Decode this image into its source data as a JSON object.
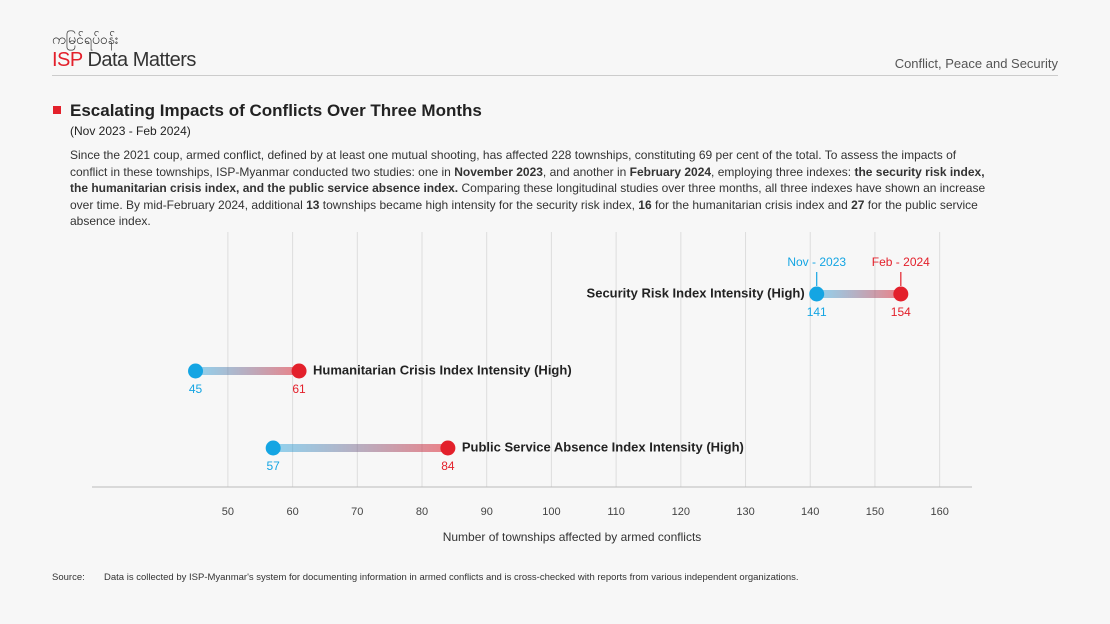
{
  "header": {
    "logo_script": "ကမြင်ရပ်ဝန်း",
    "logo_isp": "ISP",
    "logo_name": "Data Matters",
    "section": "Conflict, Peace and Security"
  },
  "title": "Escalating Impacts of Conflicts Over Three Months",
  "subtitle": "(Nov 2023 - Feb 2024)",
  "paragraph": {
    "runs": [
      {
        "text": "Since the 2021 coup, armed conflict, defined by at least one mutual shooting, has affected 228 townships, constituting 69 per cent of the total. To assess the impacts of conflict in these townships, ISP-Myanmar conducted two studies: one in ",
        "bold": false
      },
      {
        "text": "November 2023",
        "bold": true
      },
      {
        "text": ", and another in ",
        "bold": false
      },
      {
        "text": "February 2024",
        "bold": true
      },
      {
        "text": ", employing three indexes: ",
        "bold": false
      },
      {
        "text": "the security risk index, the humanitarian crisis index, and the public service absence index.",
        "bold": true
      },
      {
        "text": " Comparing these longitudinal studies over three months, all three indexes have shown an increase over time. By mid-February 2024, additional ",
        "bold": false
      },
      {
        "text": "13",
        "bold": true
      },
      {
        "text": " townships became high intensity for the security risk index, ",
        "bold": false
      },
      {
        "text": "16",
        "bold": true
      },
      {
        "text": " for the humanitarian crisis index and ",
        "bold": false
      },
      {
        "text": "27",
        "bold": true
      },
      {
        "text": " for the public service absence index.",
        "bold": false
      }
    ]
  },
  "chart_data": {
    "type": "dumbbell",
    "categories": [
      "Security Risk Index Intensity (High)",
      "Humanitarian Crisis Index Intensity (High)",
      "Public Service Absence Index Intensity (High)"
    ],
    "series": [
      {
        "name": "Nov - 2023",
        "color": "#14a5e3",
        "values": [
          141,
          45,
          57
        ]
      },
      {
        "name": "Feb - 2024",
        "color": "#e3202b",
        "values": [
          154,
          61,
          84
        ]
      }
    ],
    "xlim": [
      29,
      165
    ],
    "xticks": [
      50,
      60,
      70,
      80,
      90,
      100,
      110,
      120,
      130,
      140,
      150,
      160
    ],
    "xlabel": "Number of townships affected by armed conflicts",
    "grid": true
  },
  "source": {
    "label": "Source:",
    "text": "Data is collected by ISP-Myanmar's system for documenting information in armed conflicts and is cross-checked with reports from various independent organizations."
  }
}
